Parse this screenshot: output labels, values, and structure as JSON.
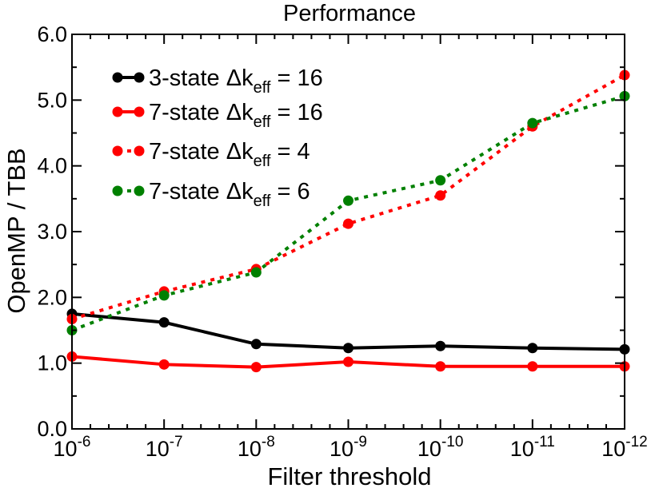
{
  "chart_data": {
    "type": "line",
    "title": "Performance",
    "xlabel": "Filter threshold",
    "ylabel": "OpenMP / TBB",
    "categories": [
      "10^-6",
      "10^-7",
      "10^-8",
      "10^-9",
      "10^-10",
      "10^-11",
      "10^-12"
    ],
    "x_ticks": [
      {
        "base": "10",
        "exp": "-6"
      },
      {
        "base": "10",
        "exp": "-7"
      },
      {
        "base": "10",
        "exp": "-8"
      },
      {
        "base": "10",
        "exp": "-9"
      },
      {
        "base": "10",
        "exp": "-10"
      },
      {
        "base": "10",
        "exp": "-11"
      },
      {
        "base": "10",
        "exp": "-12"
      }
    ],
    "x_scale": "log",
    "y_ticks": [
      "0.0",
      "1.0",
      "2.0",
      "3.0",
      "4.0",
      "5.0",
      "6.0"
    ],
    "ylim": [
      0,
      6
    ],
    "grid": false,
    "legend_position": "top-left",
    "series": [
      {
        "name": "3-state Δk_eff = 16",
        "legend_main": "3-state Δk",
        "legend_sub": "eff",
        "legend_tail": " = 16",
        "color": "#000000",
        "style": "solid",
        "values": [
          1.75,
          1.62,
          1.29,
          1.23,
          1.26,
          1.23,
          1.21
        ]
      },
      {
        "name": "7-state Δk_eff = 16",
        "legend_main": "7-state Δk",
        "legend_sub": "eff",
        "legend_tail": " = 16",
        "color": "#ff0000",
        "style": "solid",
        "values": [
          1.1,
          0.98,
          0.94,
          1.02,
          0.95,
          0.95,
          0.95
        ]
      },
      {
        "name": "7-state Δk_eff = 4",
        "legend_main": "7-state Δk",
        "legend_sub": "eff",
        "legend_tail": " = 4",
        "color": "#ff0000",
        "style": "dotted",
        "values": [
          1.67,
          2.09,
          2.43,
          3.12,
          3.55,
          4.6,
          5.38
        ]
      },
      {
        "name": "7-state Δk_eff = 6",
        "legend_main": "7-state Δk",
        "legend_sub": "eff",
        "legend_tail": " = 6",
        "color": "#008000",
        "style": "dotted",
        "values": [
          1.5,
          2.03,
          2.38,
          3.47,
          3.78,
          4.65,
          5.06
        ]
      }
    ]
  }
}
